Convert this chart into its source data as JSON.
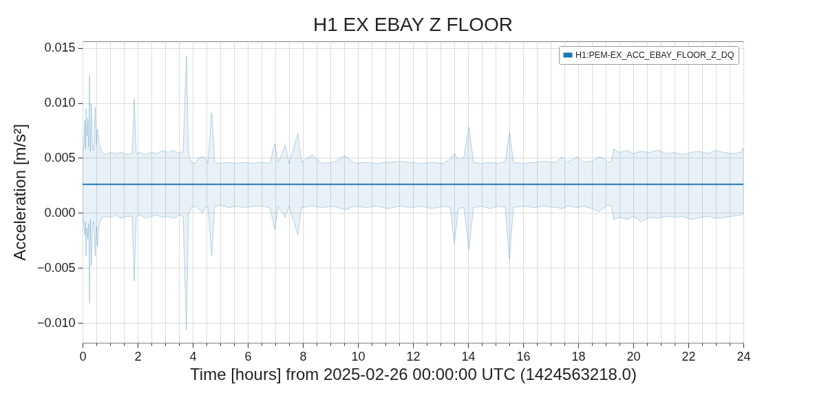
{
  "chart_data": {
    "type": "line",
    "title": "H1 EX EBAY Z FLOOR",
    "xlabel": "Time [hours] from 2025-02-26 00:00:00 UTC (1424563218.0)",
    "ylabel": "Acceleration [m/s²]",
    "xlim": [
      0,
      24
    ],
    "ylim": [
      -0.0118,
      0.0156
    ],
    "xticks": [
      0,
      {
        "value": 0.5,
        "label": null
      },
      {
        "value": 1,
        "label": null
      },
      {
        "value": 1.5,
        "label": null
      },
      2,
      {
        "value": 2.5,
        "label": null
      },
      {
        "value": 3,
        "label": null
      },
      {
        "value": 3.5,
        "label": null
      },
      4,
      {
        "value": 4.5,
        "label": null
      },
      {
        "value": 5,
        "label": null
      },
      {
        "value": 5.5,
        "label": null
      },
      6,
      {
        "value": 6.5,
        "label": null
      },
      {
        "value": 7,
        "label": null
      },
      {
        "value": 7.5,
        "label": null
      },
      8,
      {
        "value": 8.5,
        "label": null
      },
      {
        "value": 9,
        "label": null
      },
      {
        "value": 9.5,
        "label": null
      },
      10,
      {
        "value": 10.5,
        "label": null
      },
      {
        "value": 11,
        "label": null
      },
      {
        "value": 11.5,
        "label": null
      },
      12,
      {
        "value": 12.5,
        "label": null
      },
      {
        "value": 13,
        "label": null
      },
      {
        "value": 13.5,
        "label": null
      },
      14,
      {
        "value": 14.5,
        "label": null
      },
      {
        "value": 15,
        "label": null
      },
      {
        "value": 15.5,
        "label": null
      },
      16,
      {
        "value": 16.5,
        "label": null
      },
      {
        "value": 17,
        "label": null
      },
      {
        "value": 17.5,
        "label": null
      },
      18,
      {
        "value": 18.5,
        "label": null
      },
      {
        "value": 19,
        "label": null
      },
      {
        "value": 19.5,
        "label": null
      },
      20,
      {
        "value": 20.5,
        "label": null
      },
      {
        "value": 21,
        "label": null
      },
      {
        "value": 21.5,
        "label": null
      },
      22,
      {
        "value": 22.5,
        "label": null
      },
      {
        "value": 23,
        "label": null
      },
      {
        "value": 23.5,
        "label": null
      },
      24
    ],
    "yticks": [
      {
        "value": -0.01,
        "label": "−0.010"
      },
      {
        "value": -0.005,
        "label": "−0.005"
      },
      {
        "value": 0,
        "label": "0.000"
      },
      0.005,
      {
        "value": 0.01,
        "label": "0.010"
      },
      0.015
    ],
    "grid": true,
    "legend": "top right",
    "series": [
      {
        "name": "H1:PEM-EX_ACC_EBAY_FLOOR_Z_DQ",
        "color": "#1f77b4",
        "x": [
          0,
          0.04,
          0.08,
          0.1,
          0.125,
          0.16,
          0.19,
          0.22,
          0.25,
          0.28,
          0.32,
          0.36,
          0.4,
          0.46,
          0.5,
          0.54,
          0.6,
          0.7,
          0.85,
          1.0,
          1.2,
          1.4,
          1.6,
          1.8,
          1.875,
          1.95,
          2.1,
          2.3,
          2.5,
          2.7,
          2.9,
          3.1,
          3.3,
          3.5,
          3.65,
          3.77,
          3.85,
          3.96,
          4.1,
          4.2,
          4.35,
          4.45,
          4.55,
          4.69,
          4.8,
          5.0,
          5.3,
          5.6,
          5.9,
          6.2,
          6.5,
          6.8,
          6.98,
          7.1,
          7.36,
          7.5,
          7.82,
          7.95,
          8.33,
          8.7,
          9.1,
          9.52,
          9.9,
          10.3,
          10.7,
          11.1,
          11.5,
          11.9,
          12.3,
          12.7,
          13.1,
          13.35,
          13.5,
          13.65,
          13.85,
          14.03,
          14.2,
          14.5,
          14.8,
          15.1,
          15.35,
          15.5,
          15.65,
          16.0,
          16.4,
          16.8,
          17.2,
          17.42,
          17.6,
          17.98,
          18.2,
          18.5,
          18.75,
          18.9,
          19.08,
          19.2,
          19.3,
          19.5,
          19.8,
          20.0,
          20.28,
          20.6,
          20.9,
          21.2,
          21.5,
          21.8,
          22.1,
          22.4,
          22.7,
          23.0,
          23.3,
          23.6,
          23.9,
          24.0
        ],
        "values": [
          0.0026,
          0.0026,
          0.0026,
          0.0026,
          0.0026,
          0.0026,
          0.0026,
          0.0026,
          0.0026,
          0.0026,
          0.0026,
          0.0026,
          0.0026,
          0.0026,
          0.0026,
          0.0026,
          0.0026,
          0.0026,
          0.0026,
          0.0026,
          0.0026,
          0.0026,
          0.0026,
          0.0026,
          0.0026,
          0.0026,
          0.0026,
          0.0026,
          0.0026,
          0.0026,
          0.0026,
          0.0026,
          0.0026,
          0.0026,
          0.0026,
          0.0026,
          0.0026,
          0.0026,
          0.0026,
          0.0026,
          0.0026,
          0.0026,
          0.0026,
          0.0026,
          0.0026,
          0.0026,
          0.0026,
          0.0026,
          0.0026,
          0.0026,
          0.0026,
          0.0026,
          0.0026,
          0.0026,
          0.0026,
          0.0026,
          0.0026,
          0.0026,
          0.0026,
          0.0026,
          0.0026,
          0.0026,
          0.0026,
          0.0026,
          0.0026,
          0.0026,
          0.0026,
          0.0026,
          0.0026,
          0.0026,
          0.0026,
          0.0026,
          0.0026,
          0.0026,
          0.0026,
          0.0026,
          0.0026,
          0.0026,
          0.0026,
          0.0026,
          0.0026,
          0.0026,
          0.0026,
          0.0026,
          0.0026,
          0.0026,
          0.0026,
          0.0026,
          0.0026,
          0.0026,
          0.0026,
          0.0026,
          0.0026,
          0.0026,
          0.0026,
          0.0026,
          0.0026,
          0.0026,
          0.0026,
          0.0026,
          0.0026,
          0.0026,
          0.0026,
          0.0026,
          0.0026,
          0.0026,
          0.0026,
          0.0026,
          0.0026,
          0.0026,
          0.0026,
          0.0026,
          0.0026,
          0.0026
        ],
        "upper": [
          0.0054,
          0.0062,
          0.0084,
          0.0058,
          0.0095,
          0.007,
          0.0086,
          0.006,
          0.0125,
          0.0056,
          0.0099,
          0.006,
          0.0057,
          0.0096,
          0.0062,
          0.0076,
          0.0063,
          0.0055,
          0.0053,
          0.0055,
          0.0054,
          0.0055,
          0.0053,
          0.0054,
          0.0104,
          0.0054,
          0.0055,
          0.0053,
          0.0055,
          0.0054,
          0.0057,
          0.0055,
          0.0057,
          0.0054,
          0.0056,
          0.0143,
          0.0053,
          0.0046,
          0.0045,
          0.005,
          0.0051,
          0.005,
          0.0045,
          0.0091,
          0.0046,
          0.0045,
          0.0046,
          0.0045,
          0.0046,
          0.0045,
          0.0046,
          0.0045,
          0.0063,
          0.0046,
          0.0061,
          0.0045,
          0.0072,
          0.0046,
          0.0053,
          0.0045,
          0.0046,
          0.0052,
          0.0045,
          0.0046,
          0.0045,
          0.0046,
          0.0047,
          0.0046,
          0.0045,
          0.0046,
          0.0045,
          0.0049,
          0.0054,
          0.0048,
          0.0051,
          0.0078,
          0.0046,
          0.0045,
          0.0046,
          0.0045,
          0.0047,
          0.0073,
          0.0046,
          0.0045,
          0.0046,
          0.0047,
          0.0046,
          0.0051,
          0.0046,
          0.0051,
          0.0046,
          0.0047,
          0.0051,
          0.005,
          0.0046,
          0.0047,
          0.0058,
          0.0055,
          0.0057,
          0.0054,
          0.0056,
          0.0055,
          0.0057,
          0.0054,
          0.0055,
          0.0053,
          0.0055,
          0.0056,
          0.0054,
          0.0057,
          0.0055,
          0.0054,
          0.0055,
          0.0059
        ],
        "lower": [
          -0.0001,
          -0.0012,
          -0.002,
          -0.0008,
          -0.0039,
          -0.0014,
          -0.0024,
          -0.001,
          -0.0082,
          -0.0006,
          -0.0048,
          -0.0012,
          -0.0008,
          -0.0039,
          -0.0012,
          -0.003,
          -0.001,
          -0.0004,
          -0.0003,
          -0.0004,
          -0.0002,
          -0.0005,
          -0.0003,
          -0.0003,
          -0.0062,
          -0.0003,
          -0.0002,
          -0.0005,
          -0.0003,
          -0.0002,
          -0.0004,
          -0.0003,
          -0.0005,
          -0.0002,
          -0.0003,
          -0.0106,
          -0.0001,
          0.0005,
          0.0006,
          0.0004,
          0,
          0.0005,
          0.0006,
          -0.0039,
          0.0006,
          0.0007,
          0.0005,
          0.0006,
          0.0005,
          0.0006,
          0.0006,
          0.0005,
          -0.0015,
          0.0006,
          -0.0004,
          0.0006,
          -0.002,
          0.0005,
          0.0006,
          0.0005,
          0.0006,
          0.0003,
          0.0006,
          0.0005,
          0.0006,
          0.0004,
          0.0006,
          0.0005,
          0.0006,
          0.0004,
          0.0006,
          0.0005,
          -0.0028,
          0.0004,
          0.0005,
          -0.0033,
          0.0005,
          0.0006,
          0.0004,
          0.0006,
          0.0005,
          -0.0042,
          0.0005,
          0.0006,
          0.0005,
          0.0006,
          0.0005,
          0.0004,
          0.0006,
          0.0005,
          0.0006,
          0.0004,
          0.0001,
          0.0004,
          0.0007,
          0.0006,
          -0.0006,
          -0.0004,
          -0.0006,
          -0.0003,
          -0.0008,
          -0.0004,
          -0.0005,
          -0.0003,
          -0.0004,
          -0.0003,
          -0.0006,
          -0.0004,
          -0.0003,
          -0.0005,
          -0.0004,
          -0.0003,
          -0.0002,
          -0.0001
        ]
      }
    ]
  }
}
